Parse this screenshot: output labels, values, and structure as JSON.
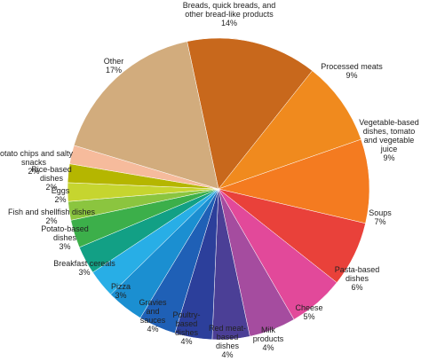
{
  "chart_data": {
    "type": "pie",
    "categories": [
      "Breads, quick breads, and other bread-like products",
      "Processed meats",
      "Vegetable-based dishes, tomato and vegetable juice",
      "Soups",
      "Pasta-based dishes",
      "Cheese",
      "Milk products",
      "Red meat-based dishes",
      "Poultry-based dishes",
      "Gravies and sauces",
      "Pizza",
      "Breakfast cereals",
      "Potato-based dishes",
      "Fish and shellfish dishes",
      "Eggs",
      "Rice-based dishes",
      "Potato chips and salty snacks",
      "Other"
    ],
    "values": [
      14,
      9,
      9,
      7,
      6,
      5,
      4,
      4,
      4,
      4,
      3,
      3,
      3,
      2,
      2,
      2,
      2,
      17
    ],
    "value_labels": [
      "14%",
      "9%",
      "9%",
      "7%",
      "6%",
      "5%",
      "4%",
      "4%",
      "4%",
      "4%",
      "3%",
      "3%",
      "3%",
      "2%",
      "2%",
      "2%",
      "2%",
      "17%"
    ],
    "colors": [
      "#c8681c",
      "#f08a1e",
      "#f47b20",
      "#e9413a",
      "#e2499a",
      "#a54c9f",
      "#4b3f96",
      "#2c3f9b",
      "#1f60b6",
      "#1b8fd1",
      "#28aee6",
      "#12a085",
      "#3caf4a",
      "#8bc53f",
      "#c6d52f",
      "#b5b600",
      "#f6bb9c",
      "#d2ac7d"
    ]
  }
}
